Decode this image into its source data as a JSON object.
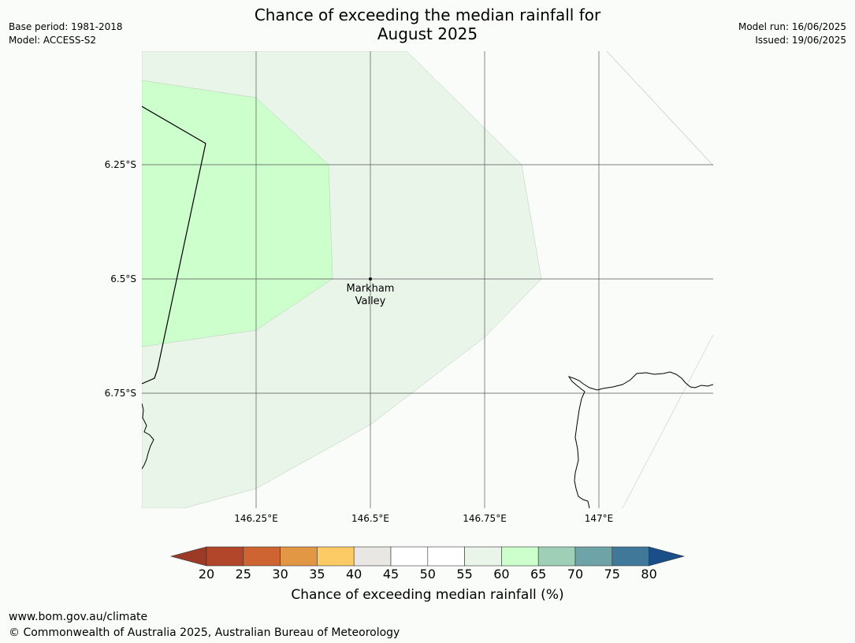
{
  "title": {
    "line1": "Chance of exceeding the median rainfall for",
    "line2": "August 2025"
  },
  "meta_left": {
    "base_period": "Base period: 1981-2018",
    "model": "Model: ACCESS-S2"
  },
  "meta_right": {
    "model_run": "Model run: 16/06/2025",
    "issued": "Issued: 19/06/2025"
  },
  "map": {
    "place_label_line1": "Markham",
    "place_label_line2": "Valley",
    "lat_ticks": [
      "6.25°S",
      "6.5°S",
      "6.75°S"
    ],
    "lon_ticks": [
      "146.25°E",
      "146.5°E",
      "146.75°E",
      "147°E"
    ],
    "zone_colors": {
      "55_60": "#eaf5ea",
      "60_65": "#ccffcc"
    }
  },
  "colorbar": {
    "ticks": [
      "20",
      "25",
      "30",
      "35",
      "40",
      "45",
      "50",
      "55",
      "60",
      "65",
      "70",
      "75",
      "80"
    ],
    "colors": [
      "#b1462a",
      "#cd6432",
      "#e29745",
      "#fdcb66",
      "#e8e7e4",
      "#ffffff",
      "#ffffff",
      "#eaf5ea",
      "#ccffcc",
      "#9fcfb7",
      "#6ea4a8",
      "#3f7898"
    ],
    "under_color": "#9b3a26",
    "over_color": "#1a4e88",
    "label": "Chance of exceeding median rainfall (%)"
  },
  "footer": {
    "url": "www.bom.gov.au/climate",
    "copyright": "© Commonwealth of Australia 2025, Australian Bureau of Meteorology"
  }
}
